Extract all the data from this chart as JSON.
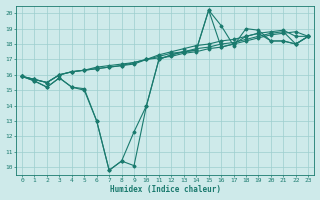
{
  "xlabel": "Humidex (Indice chaleur)",
  "xlim": [
    -0.5,
    23.5
  ],
  "ylim": [
    9.5,
    20.5
  ],
  "xticks": [
    0,
    1,
    2,
    3,
    4,
    5,
    6,
    7,
    8,
    9,
    10,
    11,
    12,
    13,
    14,
    15,
    16,
    17,
    18,
    19,
    20,
    21,
    22,
    23
  ],
  "yticks": [
    10,
    11,
    12,
    13,
    14,
    15,
    16,
    17,
    18,
    19,
    20
  ],
  "bg_color": "#ceeaea",
  "line_color": "#1a7a6e",
  "grid_color": "#9dcece",
  "multi_lines": [
    [
      [
        0,
        15.9
      ],
      [
        1,
        15.6
      ],
      [
        2,
        15.2
      ],
      [
        3,
        15.8
      ],
      [
        4,
        15.2
      ],
      [
        5,
        15.1
      ],
      [
        6,
        13.0
      ],
      [
        7,
        9.8
      ],
      [
        8,
        10.4
      ],
      [
        9,
        10.1
      ],
      [
        10,
        14.0
      ],
      [
        11,
        17.0
      ],
      [
        12,
        17.3
      ],
      [
        13,
        17.5
      ],
      [
        14,
        17.6
      ],
      [
        15,
        20.2
      ],
      [
        16,
        19.2
      ],
      [
        17,
        17.9
      ],
      [
        18,
        19.0
      ],
      [
        19,
        18.9
      ],
      [
        20,
        18.2
      ],
      [
        21,
        18.2
      ],
      [
        22,
        18.0
      ],
      [
        23,
        18.5
      ]
    ],
    [
      [
        0,
        15.9
      ],
      [
        1,
        15.6
      ],
      [
        2,
        15.2
      ],
      [
        3,
        15.8
      ],
      [
        4,
        15.2
      ],
      [
        5,
        15.0
      ],
      [
        6,
        13.0
      ],
      [
        7,
        9.8
      ],
      [
        8,
        10.4
      ],
      [
        9,
        12.3
      ],
      [
        10,
        14.0
      ],
      [
        11,
        17.0
      ],
      [
        12,
        17.3
      ],
      [
        13,
        17.5
      ],
      [
        14,
        17.6
      ],
      [
        15,
        20.2
      ],
      [
        16,
        17.8
      ],
      [
        17,
        18.0
      ],
      [
        18,
        18.5
      ],
      [
        19,
        18.7
      ],
      [
        20,
        18.2
      ],
      [
        21,
        18.2
      ],
      [
        22,
        18.0
      ],
      [
        23,
        18.5
      ]
    ],
    [
      [
        0,
        15.9
      ],
      [
        1,
        15.7
      ],
      [
        2,
        15.5
      ],
      [
        3,
        16.0
      ],
      [
        4,
        16.2
      ],
      [
        5,
        16.3
      ],
      [
        6,
        16.5
      ],
      [
        7,
        16.6
      ],
      [
        8,
        16.7
      ],
      [
        9,
        16.8
      ],
      [
        10,
        17.0
      ],
      [
        11,
        17.1
      ],
      [
        12,
        17.2
      ],
      [
        13,
        17.4
      ],
      [
        14,
        17.5
      ],
      [
        15,
        17.7
      ],
      [
        16,
        17.8
      ],
      [
        17,
        18.0
      ],
      [
        18,
        18.2
      ],
      [
        19,
        18.4
      ],
      [
        20,
        18.6
      ],
      [
        21,
        18.7
      ],
      [
        22,
        18.8
      ],
      [
        23,
        18.5
      ]
    ],
    [
      [
        0,
        15.9
      ],
      [
        1,
        15.7
      ],
      [
        2,
        15.5
      ],
      [
        3,
        16.0
      ],
      [
        4,
        16.2
      ],
      [
        5,
        16.3
      ],
      [
        6,
        16.4
      ],
      [
        7,
        16.5
      ],
      [
        8,
        16.6
      ],
      [
        9,
        16.8
      ],
      [
        10,
        17.0
      ],
      [
        11,
        17.2
      ],
      [
        12,
        17.4
      ],
      [
        13,
        17.5
      ],
      [
        14,
        17.7
      ],
      [
        15,
        17.8
      ],
      [
        16,
        18.0
      ],
      [
        17,
        18.1
      ],
      [
        18,
        18.3
      ],
      [
        19,
        18.5
      ],
      [
        20,
        18.7
      ],
      [
        21,
        18.8
      ],
      [
        22,
        18.0
      ],
      [
        23,
        18.5
      ]
    ],
    [
      [
        0,
        15.9
      ],
      [
        1,
        15.7
      ],
      [
        2,
        15.5
      ],
      [
        3,
        16.0
      ],
      [
        4,
        16.2
      ],
      [
        5,
        16.3
      ],
      [
        6,
        16.4
      ],
      [
        7,
        16.5
      ],
      [
        8,
        16.6
      ],
      [
        9,
        16.7
      ],
      [
        10,
        17.0
      ],
      [
        11,
        17.3
      ],
      [
        12,
        17.5
      ],
      [
        13,
        17.7
      ],
      [
        14,
        17.9
      ],
      [
        15,
        18.0
      ],
      [
        16,
        18.2
      ],
      [
        17,
        18.3
      ],
      [
        18,
        18.5
      ],
      [
        19,
        18.7
      ],
      [
        20,
        18.8
      ],
      [
        21,
        18.9
      ],
      [
        22,
        18.5
      ],
      [
        23,
        18.5
      ]
    ]
  ]
}
